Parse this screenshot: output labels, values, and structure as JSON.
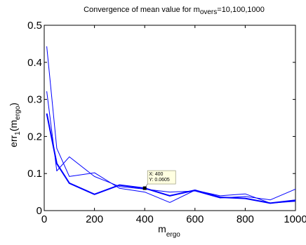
{
  "chart_data": {
    "type": "line",
    "title": {
      "prefix": "Convergence of mean value for m",
      "subscript": "overs",
      "suffix": "=10,100,1000"
    },
    "xlabel": {
      "base": "m",
      "subscript": "ergo"
    },
    "ylabel": {
      "base": "err",
      "sub1": "1",
      "mid": "(m",
      "sub2": "ergo",
      "end": ")"
    },
    "xlim": [
      0,
      1000
    ],
    "ylim": [
      0,
      0.5
    ],
    "xticks": [
      0,
      200,
      400,
      600,
      800,
      1000
    ],
    "xtick_labels": [
      "0",
      "200",
      "400",
      "600",
      "800",
      "1000"
    ],
    "yticks": [
      0,
      0.1,
      0.2,
      0.3,
      0.4,
      0.5
    ],
    "ytick_labels": [
      "0",
      "0.1",
      "0.2",
      "0.3",
      "0.4",
      "0.5"
    ],
    "grid": false,
    "series_color": "#0000ff",
    "series": [
      {
        "x": [
          10,
          50,
          100,
          200,
          300,
          400,
          500,
          600,
          700,
          800,
          900,
          1000
        ],
        "y": [
          0.443,
          0.168,
          0.092,
          0.102,
          0.06,
          0.05,
          0.022,
          0.055,
          0.04,
          0.045,
          0.02,
          0.025
        ],
        "width": 1
      },
      {
        "x": [
          10,
          50,
          100,
          200,
          300,
          400,
          500,
          600,
          700,
          800,
          900,
          1000
        ],
        "y": [
          0.322,
          0.107,
          0.145,
          0.092,
          0.065,
          0.058,
          0.05,
          0.053,
          0.034,
          0.038,
          0.029,
          0.058
        ],
        "width": 1
      },
      {
        "x": [
          10,
          50,
          100,
          200,
          300,
          400,
          500,
          600,
          700,
          800,
          900,
          1000
        ],
        "y": [
          0.262,
          0.127,
          0.074,
          0.044,
          0.069,
          0.0605,
          0.04,
          0.055,
          0.036,
          0.033,
          0.02,
          0.028
        ],
        "width": 2
      }
    ],
    "datatip": {
      "x": 400,
      "y": 0.0605,
      "line1": "X: 400",
      "line2": "Y: 0.0605"
    }
  }
}
